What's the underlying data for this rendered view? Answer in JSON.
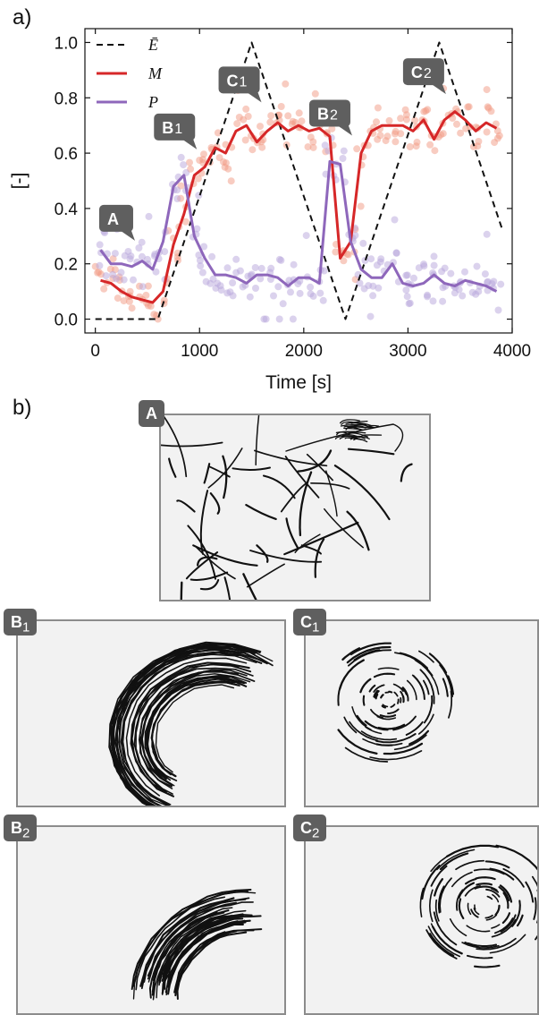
{
  "panel_labels": {
    "a": "a)",
    "b": "b)"
  },
  "chart_data": {
    "type": "line",
    "xlabel": "Time [s]",
    "ylabel": "[-]",
    "xlim": [
      -100,
      4000
    ],
    "ylim": [
      -0.05,
      1.05
    ],
    "xticks": [
      0,
      1000,
      2000,
      3000,
      4000
    ],
    "yticks": [
      0.0,
      0.2,
      0.4,
      0.6,
      0.8,
      1.0
    ],
    "xtick_labels": [
      "0",
      "1000",
      "2000",
      "3000",
      "4000"
    ],
    "ytick_labels": [
      "0.0",
      "0.2",
      "0.4",
      "0.6",
      "0.8",
      "1.0"
    ],
    "legend_position": "top-left",
    "series": [
      {
        "name": "Ē",
        "color": "#111111",
        "style": "dashed",
        "x": [
          0,
          600,
          1500,
          2400,
          3300,
          3900
        ],
        "values": [
          0.0,
          0.0,
          1.0,
          0.0,
          1.0,
          0.33
        ]
      },
      {
        "name": "M",
        "color": "#d62728",
        "style": "solid",
        "x": [
          50,
          150,
          250,
          350,
          450,
          550,
          650,
          750,
          850,
          950,
          1050,
          1150,
          1250,
          1350,
          1450,
          1550,
          1650,
          1750,
          1850,
          1950,
          2050,
          2150,
          2250,
          2350,
          2450,
          2550,
          2650,
          2750,
          2850,
          2950,
          3050,
          3150,
          3250,
          3350,
          3450,
          3550,
          3650,
          3750,
          3850
        ],
        "values": [
          0.14,
          0.13,
          0.1,
          0.08,
          0.07,
          0.06,
          0.1,
          0.27,
          0.38,
          0.52,
          0.55,
          0.62,
          0.6,
          0.68,
          0.7,
          0.64,
          0.68,
          0.71,
          0.68,
          0.7,
          0.68,
          0.69,
          0.66,
          0.22,
          0.28,
          0.6,
          0.68,
          0.7,
          0.7,
          0.7,
          0.68,
          0.72,
          0.65,
          0.72,
          0.75,
          0.72,
          0.68,
          0.71,
          0.69
        ]
      },
      {
        "name": "P",
        "color": "#8e67bb",
        "style": "solid",
        "x": [
          50,
          150,
          250,
          350,
          450,
          550,
          650,
          750,
          850,
          950,
          1050,
          1150,
          1250,
          1350,
          1450,
          1550,
          1650,
          1750,
          1850,
          1950,
          2050,
          2150,
          2250,
          2350,
          2450,
          2550,
          2650,
          2750,
          2850,
          2950,
          3050,
          3150,
          3250,
          3350,
          3450,
          3550,
          3650,
          3750,
          3850
        ],
        "values": [
          0.25,
          0.2,
          0.2,
          0.19,
          0.21,
          0.18,
          0.28,
          0.48,
          0.52,
          0.3,
          0.22,
          0.16,
          0.16,
          0.15,
          0.13,
          0.16,
          0.16,
          0.15,
          0.12,
          0.15,
          0.15,
          0.13,
          0.57,
          0.56,
          0.28,
          0.18,
          0.15,
          0.15,
          0.2,
          0.13,
          0.12,
          0.13,
          0.16,
          0.13,
          0.12,
          0.14,
          0.13,
          0.12,
          0.1
        ]
      }
    ]
  },
  "callouts": [
    {
      "id": "A",
      "letter": "A",
      "sub": "",
      "x": 200,
      "y": 0.29
    },
    {
      "id": "B1",
      "letter": "B",
      "sub": "1",
      "x": 760,
      "y": 0.62
    },
    {
      "id": "C1",
      "letter": "C",
      "sub": "1",
      "x": 1380,
      "y": 0.79
    },
    {
      "id": "B2",
      "letter": "B",
      "sub": "2",
      "x": 2250,
      "y": 0.67
    },
    {
      "id": "C2",
      "letter": "C",
      "sub": "2",
      "x": 3150,
      "y": 0.82
    }
  ],
  "snapshots": [
    {
      "id": "A",
      "letter": "A",
      "sub": ""
    },
    {
      "id": "B1",
      "letter": "B",
      "sub": "1"
    },
    {
      "id": "C1",
      "letter": "C",
      "sub": "1"
    },
    {
      "id": "B2",
      "letter": "B",
      "sub": "2"
    },
    {
      "id": "C2",
      "letter": "C",
      "sub": "2"
    }
  ]
}
